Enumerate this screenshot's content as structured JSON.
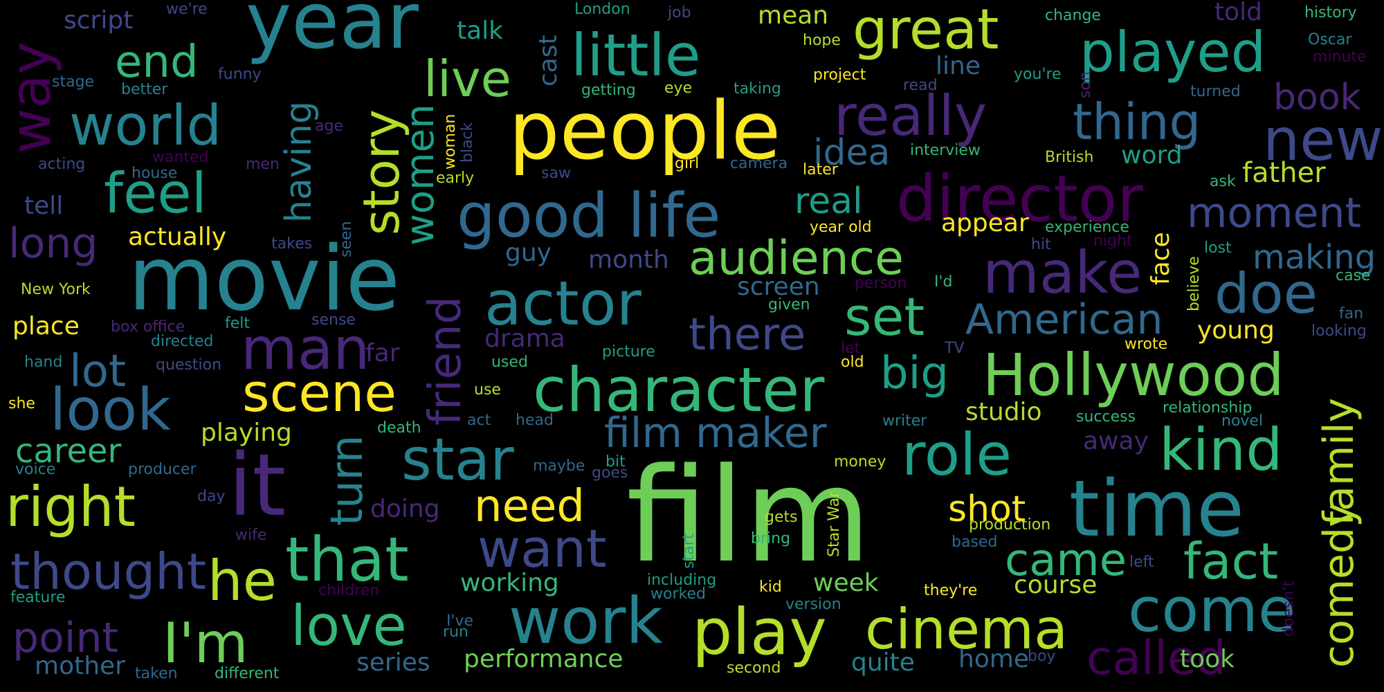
{
  "palette": {
    "background": "#000000",
    "yellow": "#fde725",
    "lime": "#b5de2b",
    "green": "#6ece58",
    "sea": "#35b779",
    "teal": "#1f9e89",
    "cyan": "#26828e",
    "blue": "#31688e",
    "indigo": "#3e4989",
    "violet": "#482878",
    "purple": "#440154"
  },
  "words": {
    "film": "film",
    "movie": "movie",
    "people": "people",
    "year": "year",
    "time": "time",
    "character": "character",
    "actor": "actor",
    "director": "director",
    "hollywood": "Hollywood",
    "good_life": "good life",
    "little": "little",
    "great": "great",
    "played": "played",
    "really": "really",
    "thing": "thing",
    "new": "new",
    "world": "world",
    "end": "end",
    "feel": "feel",
    "way": "way",
    "story": "story",
    "women": "women",
    "having": "having",
    "live": "live",
    "make": "make",
    "doe": "doe",
    "american": "American",
    "set": "set",
    "there": "there",
    "audience": "audience",
    "moment": "moment",
    "father": "father",
    "book": "book",
    "idea": "idea",
    "real": "real",
    "long": "long",
    "man": "man",
    "scene": "scene",
    "look": "look",
    "lot": "lot",
    "it": "it",
    "friend": "friend",
    "big": "big",
    "right": "right",
    "star": "star",
    "film_maker": "film maker",
    "role": "role",
    "kind": "kind",
    "comedy": "comedy",
    "family": "family",
    "fact": "fact",
    "came": "came",
    "come": "come",
    "called": "called",
    "play": "play",
    "cinema": "cinema",
    "work": "work",
    "love": "love",
    "im": "I'm",
    "he": "he",
    "that": "that",
    "thought": "thought",
    "point": "point",
    "want": "want",
    "need": "need",
    "turn": "turn",
    "shot": "shot",
    "career": "career",
    "playing": "playing",
    "actually": "actually",
    "place": "place",
    "tell": "tell",
    "script": "script",
    "were": "we're",
    "stage": "stage",
    "funny": "funny",
    "better": "better",
    "age": "age",
    "acting": "acting",
    "wanted": "wanted",
    "men": "men",
    "house": "house",
    "takes": "takes",
    "seen": "seen",
    "new_york": "New York",
    "box_office": "box office",
    "felt": "felt",
    "directed": "directed",
    "sense": "sense",
    "hand": "hand",
    "question": "question",
    "far": "far",
    "drama": "drama",
    "used": "used",
    "she": "she",
    "use": "use",
    "death": "death",
    "act": "act",
    "head": "head",
    "voice": "voice",
    "producer": "producer",
    "maybe": "maybe",
    "bit": "bit",
    "goes": "goes",
    "day": "day",
    "wife": "wife",
    "doing": "doing",
    "children": "children",
    "feature": "feature",
    "mother": "mother",
    "taken": "taken",
    "different": "different",
    "ive": "I've",
    "run": "run",
    "series": "series",
    "performance": "performance",
    "working": "working",
    "including": "including",
    "worked": "worked",
    "start": "start",
    "gets": "gets",
    "bring": "bring",
    "star_war": "Star War",
    "kid": "kid",
    "version": "version",
    "week": "week",
    "theyre": "they're",
    "course": "course",
    "quite": "quite",
    "home": "home",
    "boy": "boy",
    "second": "second",
    "took": "took",
    "left": "left",
    "doesnt": "doesn't",
    "production": "production",
    "based": "based",
    "talk": "talk",
    "cast": "cast",
    "london": "London",
    "job": "job",
    "mean": "mean",
    "hope": "hope",
    "project": "project",
    "getting": "getting",
    "eye": "eye",
    "taking": "taking",
    "line": "line",
    "read": "read",
    "youre": "you're",
    "son": "son",
    "change": "change",
    "told": "told",
    "history": "history",
    "oscar": "Oscar",
    "minute": "minute",
    "turned": "turned",
    "woman": "woman",
    "black": "black",
    "early": "early",
    "saw": "saw",
    "girl": "girl",
    "camera": "camera",
    "later": "later",
    "interview": "interview",
    "british": "British",
    "word": "word",
    "ask": "ask",
    "year_old": "year old",
    "appear": "appear",
    "experience": "experience",
    "hit": "hit",
    "night": "night",
    "lost": "lost",
    "face": "face",
    "believe": "believe",
    "making": "making",
    "case": "case",
    "guy": "guy",
    "month": "month",
    "screen": "screen",
    "person": "person",
    "id": "I'd",
    "given": "given",
    "young": "young",
    "fan": "fan",
    "looking": "looking",
    "picture": "picture",
    "let": "let",
    "tv": "TV",
    "old": "old",
    "wrote": "wrote",
    "studio": "studio",
    "success": "success",
    "relationship": "relationship",
    "novel": "novel",
    "away": "away",
    "writer": "writer",
    "money": "money"
  }
}
